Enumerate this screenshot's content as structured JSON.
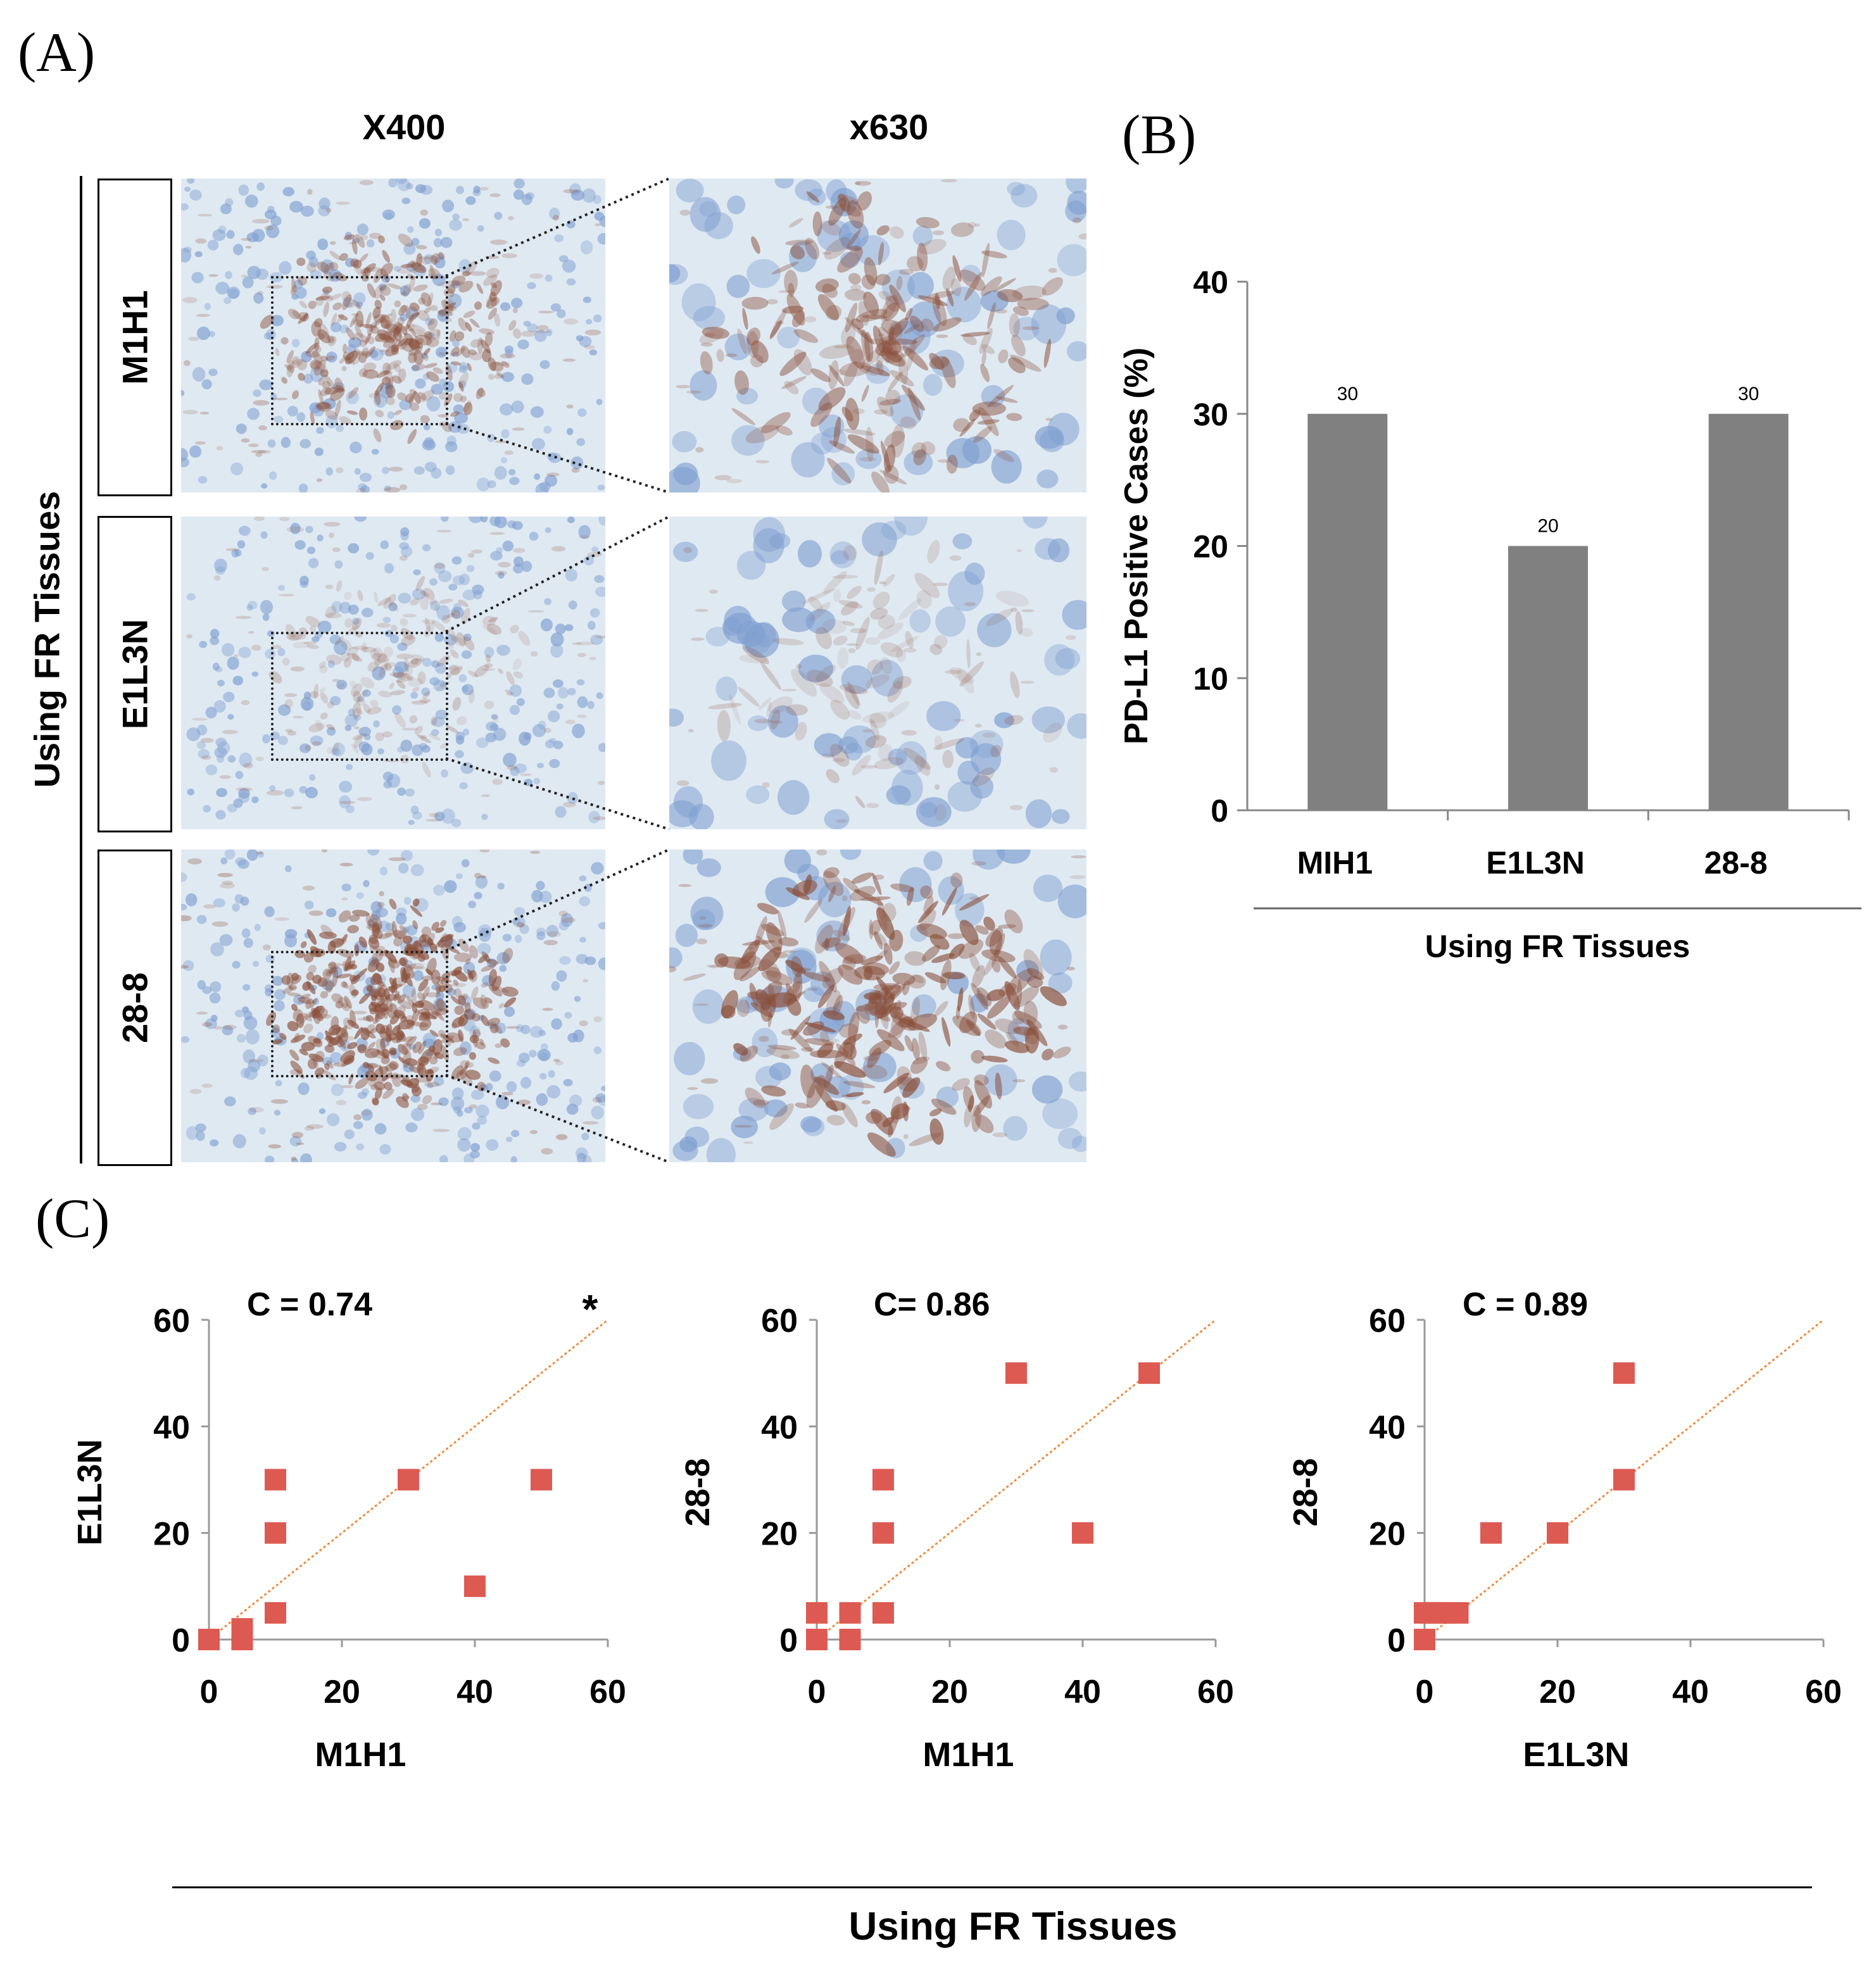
{
  "panel_a": {
    "letter": "(A)",
    "mag_low": "X400",
    "mag_high": "x630",
    "side_title": "Using FR Tissues",
    "rows": [
      {
        "label": "M1H1",
        "stain": "strong"
      },
      {
        "label": "E1L3N",
        "stain": "weak"
      },
      {
        "label": "28-8",
        "stain": "strongest"
      }
    ],
    "colors": {
      "background": "#dfe9f2",
      "nuclei": "#7f9fd0",
      "stain": "#8a4f3a"
    }
  },
  "panel_b": {
    "letter": "(B)",
    "group_label": "Using FR Tissues"
  },
  "panel_c": {
    "letter": "(C)",
    "bottom_title": "Using FR Tissues"
  },
  "chart_data": [
    {
      "type": "bar",
      "panel": "B",
      "categories": [
        "MIH1",
        "E1L3N",
        "28-8"
      ],
      "values": [
        30,
        20,
        30
      ],
      "data_labels": [
        "30",
        "20",
        "30"
      ],
      "xlabel": "Using FR Tissues",
      "ylabel": "PD-L1 Positive Cases (%)",
      "ylim": [
        0,
        40
      ],
      "yticks": [
        0,
        10,
        20,
        30,
        40
      ],
      "bar_color": "#808080"
    },
    {
      "type": "scatter",
      "panel": "C1",
      "title": "C = 0.74",
      "annotation": "*",
      "xlabel": "M1H1",
      "ylabel": "E1L3N",
      "xlim": [
        0,
        60
      ],
      "ylim": [
        0,
        60
      ],
      "ticks": [
        0,
        20,
        40,
        60
      ],
      "points": [
        [
          0,
          0
        ],
        [
          5,
          0
        ],
        [
          5,
          1
        ],
        [
          5,
          2
        ],
        [
          10,
          5
        ],
        [
          10,
          20
        ],
        [
          10,
          30
        ],
        [
          30,
          30
        ],
        [
          40,
          10
        ],
        [
          50,
          30
        ]
      ],
      "trendline": [
        [
          0,
          0
        ],
        [
          60,
          60
        ]
      ],
      "marker_color": "#dd5a52",
      "trend_color": "#f08a3c"
    },
    {
      "type": "scatter",
      "panel": "C2",
      "title": "C= 0.86",
      "xlabel": "M1H1",
      "ylabel": "28-8",
      "xlim": [
        0,
        60
      ],
      "ylim": [
        0,
        60
      ],
      "ticks": [
        0,
        20,
        40,
        60
      ],
      "points": [
        [
          0,
          0
        ],
        [
          0,
          5
        ],
        [
          5,
          0
        ],
        [
          5,
          5
        ],
        [
          10,
          5
        ],
        [
          10,
          20
        ],
        [
          10,
          30
        ],
        [
          30,
          50
        ],
        [
          40,
          20
        ],
        [
          50,
          50
        ]
      ],
      "trendline": [
        [
          0,
          0
        ],
        [
          60,
          60
        ]
      ],
      "marker_color": "#dd5a52",
      "trend_color": "#f08a3c"
    },
    {
      "type": "scatter",
      "panel": "C3",
      "title": "C = 0.89",
      "xlabel": "E1L3N",
      "ylabel": "28-8",
      "xlim": [
        0,
        60
      ],
      "ylim": [
        0,
        60
      ],
      "ticks": [
        0,
        20,
        40,
        60
      ],
      "points": [
        [
          0,
          0
        ],
        [
          0,
          5
        ],
        [
          1,
          5
        ],
        [
          2,
          5
        ],
        [
          3,
          5
        ],
        [
          5,
          5
        ],
        [
          10,
          20
        ],
        [
          20,
          20
        ],
        [
          30,
          30
        ],
        [
          30,
          50
        ]
      ],
      "trendline": [
        [
          0,
          0
        ],
        [
          60,
          60
        ]
      ],
      "marker_color": "#dd5a52",
      "trend_color": "#f08a3c"
    }
  ]
}
